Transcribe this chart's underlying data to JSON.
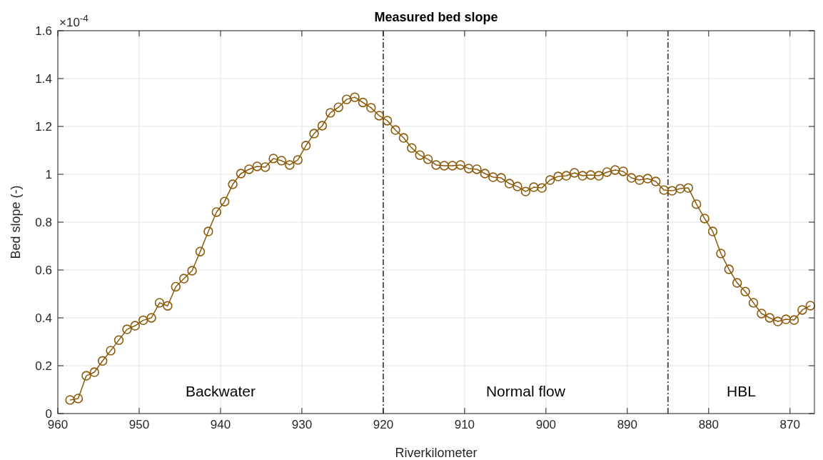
{
  "chart_data": {
    "type": "line",
    "title": "Measured bed slope",
    "xlabel": "Riverkilometer",
    "ylabel": "Bed slope (-)",
    "x": [
      958.5,
      957.5,
      956.5,
      955.5,
      954.5,
      953.5,
      952.5,
      951.5,
      950.5,
      949.5,
      948.5,
      947.5,
      946.5,
      945.5,
      944.5,
      943.5,
      942.5,
      941.5,
      940.5,
      939.5,
      938.5,
      937.5,
      936.5,
      935.5,
      934.5,
      933.5,
      932.5,
      931.5,
      930.5,
      929.5,
      928.5,
      927.5,
      926.5,
      925.5,
      924.5,
      923.5,
      922.5,
      921.5,
      920.5,
      919.5,
      918.5,
      917.5,
      916.5,
      915.5,
      914.5,
      913.5,
      912.5,
      911.5,
      910.5,
      909.5,
      908.5,
      907.5,
      906.5,
      905.5,
      904.5,
      903.5,
      902.5,
      901.5,
      900.5,
      899.5,
      898.5,
      897.5,
      896.5,
      895.5,
      894.5,
      893.5,
      892.5,
      891.5,
      890.5,
      889.5,
      888.5,
      887.5,
      886.5,
      885.5,
      884.5,
      883.5,
      882.5,
      881.5,
      880.5,
      879.5,
      878.5,
      877.5,
      876.5,
      875.5,
      874.5,
      873.5,
      872.5,
      871.5,
      870.5,
      869.5,
      868.5,
      867.5
    ],
    "series": [
      {
        "color": "#8b5a0a",
        "values": [
          0.057,
          0.063,
          0.158,
          0.173,
          0.22,
          0.263,
          0.307,
          0.352,
          0.367,
          0.39,
          0.4,
          0.463,
          0.45,
          0.53,
          0.564,
          0.597,
          0.677,
          0.761,
          0.842,
          0.886,
          0.958,
          1.003,
          1.021,
          1.033,
          1.03,
          1.066,
          1.057,
          1.039,
          1.06,
          1.12,
          1.17,
          1.203,
          1.257,
          1.28,
          1.313,
          1.322,
          1.3,
          1.278,
          1.245,
          1.224,
          1.185,
          1.152,
          1.11,
          1.08,
          1.063,
          1.039,
          1.036,
          1.036,
          1.039,
          1.024,
          1.021,
          1.003,
          0.988,
          0.985,
          0.961,
          0.949,
          0.928,
          0.946,
          0.943,
          0.976,
          0.991,
          0.994,
          1.006,
          0.994,
          0.997,
          0.994,
          1.009,
          1.018,
          1.012,
          0.985,
          0.976,
          0.982,
          0.97,
          0.934,
          0.931,
          0.94,
          0.943,
          0.875,
          0.815,
          0.761,
          0.669,
          0.603,
          0.546,
          0.51,
          0.463,
          0.418,
          0.4,
          0.385,
          0.394,
          0.391,
          0.433,
          0.451
        ]
      }
    ],
    "xlim": [
      960,
      867
    ],
    "xticks": [
      960,
      950,
      940,
      930,
      920,
      910,
      900,
      890,
      880,
      870
    ],
    "ylim": [
      0,
      1.6
    ],
    "yticks": [
      0,
      0.2,
      0.4,
      0.6,
      0.8,
      1,
      1.2,
      1.4,
      1.6
    ],
    "grid": true,
    "marker": "circle",
    "line_style": "solid",
    "ref_lines": [
      {
        "axis": "x",
        "value": 920,
        "color": "#555555",
        "line_style": "dashed"
      },
      {
        "axis": "x",
        "value": 885,
        "color": "#555555",
        "line_style": "dashed"
      }
    ],
    "annotations": [
      "×10$^{-4}$",
      "Backwater",
      "Normal flow",
      "HBL"
    ]
  }
}
